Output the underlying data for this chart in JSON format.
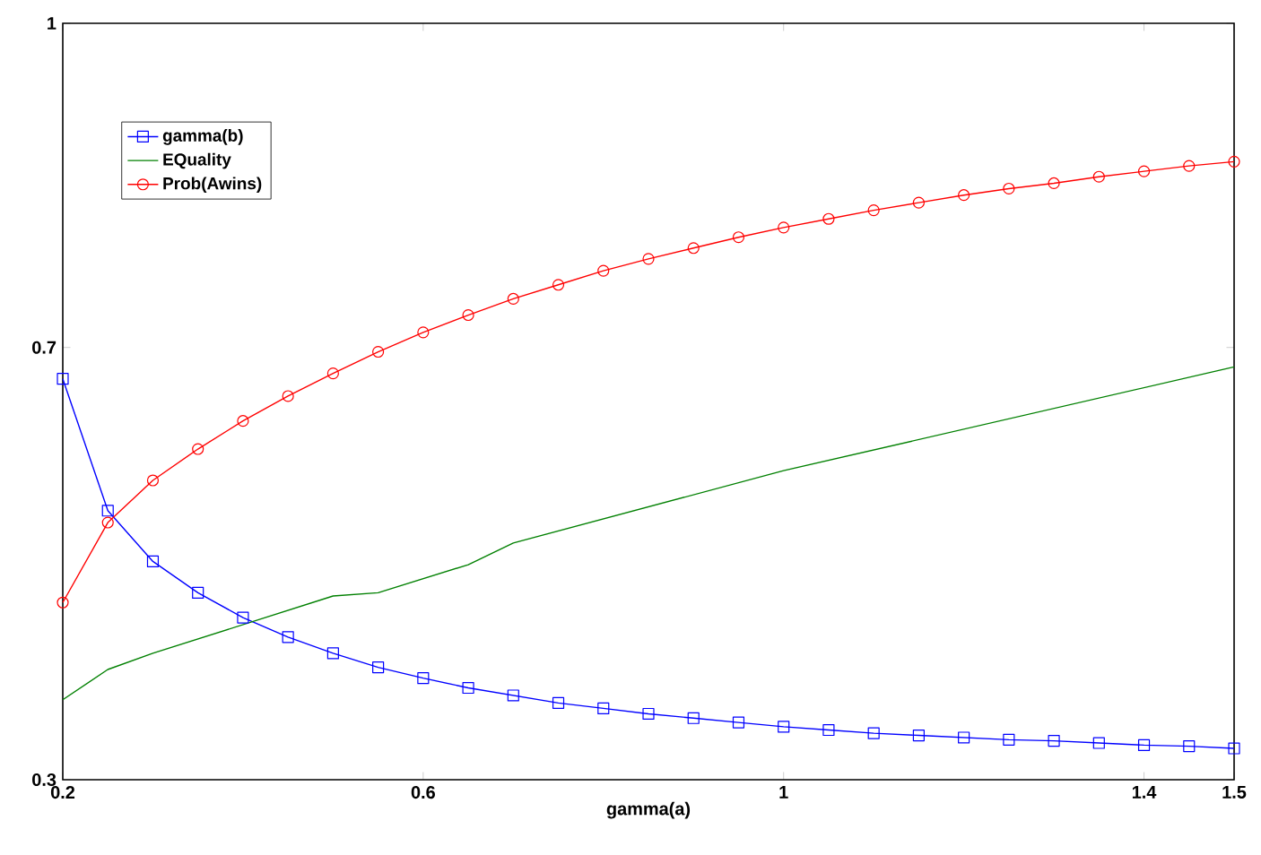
{
  "chart_data": {
    "type": "line",
    "xlabel": "gamma(a)",
    "x": [
      0.2,
      0.25,
      0.3,
      0.35,
      0.4,
      0.45,
      0.5,
      0.55,
      0.6,
      0.65,
      0.7,
      0.75,
      0.8,
      0.85,
      0.9,
      0.95,
      1.0,
      1.05,
      1.1,
      1.15,
      1.2,
      1.25,
      1.3,
      1.35,
      1.4,
      1.45,
      1.5
    ],
    "series": [
      {
        "name": "gamma(b)",
        "color": "#0000ff",
        "marker": "square",
        "values": [
          0.671,
          0.549,
          0.502,
          0.473,
          0.45,
          0.432,
          0.417,
          0.404,
          0.394,
          0.385,
          0.378,
          0.371,
          0.366,
          0.361,
          0.357,
          0.353,
          0.349,
          0.346,
          0.343,
          0.341,
          0.339,
          0.337,
          0.336,
          0.334,
          0.332,
          0.331,
          0.329
        ]
      },
      {
        "name": "EQuality",
        "color": "#008000",
        "marker": "none",
        "x": [
          0.2,
          0.25,
          0.3,
          0.5,
          0.55,
          0.65,
          0.7,
          1.0,
          1.5
        ],
        "values": [
          0.374,
          0.402,
          0.417,
          0.47,
          0.473,
          0.499,
          0.519,
          0.586,
          0.682
        ]
      },
      {
        "name": "Prob(Awins)",
        "color": "#ff0000",
        "marker": "circle",
        "values": [
          0.464,
          0.538,
          0.577,
          0.606,
          0.632,
          0.655,
          0.676,
          0.696,
          0.714,
          0.73,
          0.745,
          0.758,
          0.771,
          0.782,
          0.792,
          0.802,
          0.811,
          0.819,
          0.827,
          0.834,
          0.841,
          0.847,
          0.852,
          0.858,
          0.863,
          0.868,
          0.872
        ]
      }
    ],
    "xlim": [
      0.2,
      1.5
    ],
    "ylim": [
      0.3,
      1
    ],
    "xticks": [
      0.2,
      0.6,
      1,
      1.4,
      1.5
    ],
    "yticks": [
      0.3,
      0.7,
      1
    ],
    "grid": false,
    "legend": "top left"
  }
}
